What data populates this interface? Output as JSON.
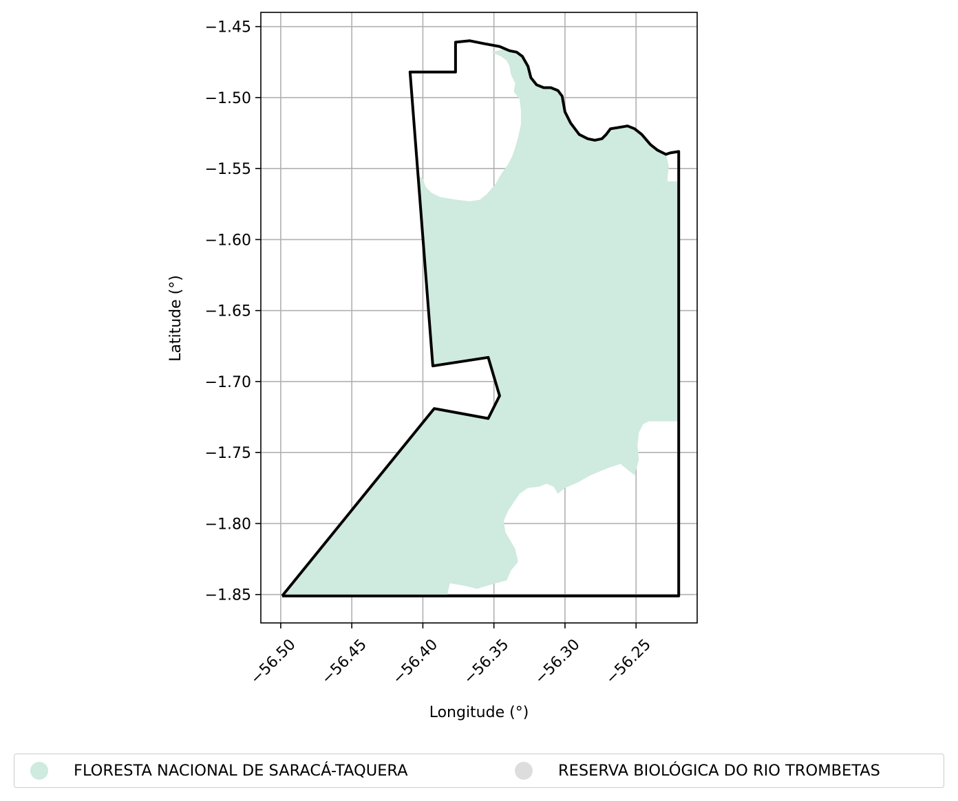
{
  "chart_data": {
    "type": "map",
    "xlabel": "Longitude (°)",
    "ylabel": "Latitude (°)",
    "xlim": [
      -56.514,
      -56.207
    ],
    "ylim": [
      -1.87,
      -1.44
    ],
    "xticks": [
      -56.5,
      -56.45,
      -56.4,
      -56.35,
      -56.3,
      -56.25
    ],
    "xtick_labels": [
      "−56.50",
      "−56.45",
      "−56.40",
      "−56.35",
      "−56.30",
      "−56.25"
    ],
    "yticks": [
      -1.45,
      -1.5,
      -1.55,
      -1.6,
      -1.65,
      -1.7,
      -1.75,
      -1.8,
      -1.85
    ],
    "ytick_labels": [
      "−1.45",
      "−1.50",
      "−1.55",
      "−1.60",
      "−1.65",
      "−1.70",
      "−1.75",
      "−1.80",
      "−1.85"
    ],
    "grid": true,
    "legend_placement": "bottom",
    "boundary": {
      "color": "#000000",
      "coords": [
        [
          -56.499,
          -1.851
        ],
        [
          -56.392,
          -1.719
        ],
        [
          -56.354,
          -1.726
        ],
        [
          -56.346,
          -1.71
        ],
        [
          -56.354,
          -1.683
        ],
        [
          -56.393,
          -1.689
        ],
        [
          -56.409,
          -1.482
        ],
        [
          -56.377,
          -1.482
        ],
        [
          -56.377,
          -1.461
        ],
        [
          -56.367,
          -1.46
        ],
        [
          -56.357,
          -1.462
        ],
        [
          -56.346,
          -1.464
        ],
        [
          -56.339,
          -1.467
        ],
        [
          -56.334,
          -1.468
        ],
        [
          -56.33,
          -1.471
        ],
        [
          -56.326,
          -1.478
        ],
        [
          -56.324,
          -1.486
        ],
        [
          -56.32,
          -1.491
        ],
        [
          -56.315,
          -1.493
        ],
        [
          -56.31,
          -1.493
        ],
        [
          -56.305,
          -1.495
        ],
        [
          -56.302,
          -1.499
        ],
        [
          -56.3,
          -1.51
        ],
        [
          -56.296,
          -1.518
        ],
        [
          -56.29,
          -1.526
        ],
        [
          -56.284,
          -1.529
        ],
        [
          -56.279,
          -1.53
        ],
        [
          -56.274,
          -1.529
        ],
        [
          -56.271,
          -1.526
        ],
        [
          -56.268,
          -1.522
        ],
        [
          -56.262,
          -1.521
        ],
        [
          -56.256,
          -1.52
        ],
        [
          -56.251,
          -1.522
        ],
        [
          -56.246,
          -1.526
        ],
        [
          -56.24,
          -1.533
        ],
        [
          -56.235,
          -1.537
        ],
        [
          -56.229,
          -1.54
        ],
        [
          -56.226,
          -1.539
        ],
        [
          -56.22,
          -1.538
        ],
        [
          -56.22,
          -1.851
        ],
        [
          -56.499,
          -1.851
        ]
      ]
    },
    "areas": [
      {
        "name": "FLORESTA NACIONAL DE SARACÁ-TAQUERA",
        "color": "#cfeade",
        "coords": [
          [
            -56.499,
            -1.851
          ],
          [
            -56.392,
            -1.719
          ],
          [
            -56.354,
            -1.726
          ],
          [
            -56.346,
            -1.71
          ],
          [
            -56.354,
            -1.683
          ],
          [
            -56.393,
            -1.689
          ],
          [
            -56.403,
            -1.555
          ],
          [
            -56.4,
            -1.557
          ],
          [
            -56.398,
            -1.563
          ],
          [
            -56.394,
            -1.567
          ],
          [
            -56.388,
            -1.57
          ],
          [
            -56.376,
            -1.572
          ],
          [
            -56.367,
            -1.573
          ],
          [
            -56.36,
            -1.572
          ],
          [
            -56.355,
            -1.568
          ],
          [
            -56.349,
            -1.561
          ],
          [
            -56.345,
            -1.554
          ],
          [
            -56.34,
            -1.547
          ],
          [
            -56.337,
            -1.541
          ],
          [
            -56.335,
            -1.535
          ],
          [
            -56.333,
            -1.528
          ],
          [
            -56.331,
            -1.519
          ],
          [
            -56.331,
            -1.509
          ],
          [
            -56.332,
            -1.501
          ],
          [
            -56.336,
            -1.496
          ],
          [
            -56.335,
            -1.49
          ],
          [
            -56.338,
            -1.484
          ],
          [
            -56.339,
            -1.478
          ],
          [
            -56.341,
            -1.474
          ],
          [
            -56.345,
            -1.471
          ],
          [
            -56.352,
            -1.468
          ],
          [
            -56.343,
            -1.466
          ],
          [
            -56.334,
            -1.468
          ],
          [
            -56.33,
            -1.471
          ],
          [
            -56.326,
            -1.478
          ],
          [
            -56.324,
            -1.486
          ],
          [
            -56.32,
            -1.491
          ],
          [
            -56.315,
            -1.493
          ],
          [
            -56.31,
            -1.493
          ],
          [
            -56.305,
            -1.495
          ],
          [
            -56.302,
            -1.499
          ],
          [
            -56.3,
            -1.51
          ],
          [
            -56.296,
            -1.518
          ],
          [
            -56.29,
            -1.526
          ],
          [
            -56.284,
            -1.529
          ],
          [
            -56.279,
            -1.53
          ],
          [
            -56.274,
            -1.529
          ],
          [
            -56.271,
            -1.526
          ],
          [
            -56.268,
            -1.522
          ],
          [
            -56.262,
            -1.521
          ],
          [
            -56.256,
            -1.52
          ],
          [
            -56.251,
            -1.522
          ],
          [
            -56.246,
            -1.526
          ],
          [
            -56.24,
            -1.533
          ],
          [
            -56.235,
            -1.537
          ],
          [
            -56.229,
            -1.54
          ],
          [
            -56.227,
            -1.548
          ],
          [
            -56.228,
            -1.559
          ],
          [
            -56.22,
            -1.559
          ],
          [
            -56.22,
            -1.728
          ],
          [
            -56.241,
            -1.728
          ],
          [
            -56.245,
            -1.73
          ],
          [
            -56.248,
            -1.736
          ],
          [
            -56.249,
            -1.745
          ],
          [
            -56.248,
            -1.755
          ],
          [
            -56.251,
            -1.766
          ],
          [
            -56.261,
            -1.758
          ],
          [
            -56.27,
            -1.761
          ],
          [
            -56.282,
            -1.766
          ],
          [
            -56.291,
            -1.771
          ],
          [
            -56.3,
            -1.775
          ],
          [
            -56.305,
            -1.779
          ],
          [
            -56.308,
            -1.774
          ],
          [
            -56.313,
            -1.772
          ],
          [
            -56.318,
            -1.774
          ],
          [
            -56.326,
            -1.775
          ],
          [
            -56.332,
            -1.779
          ],
          [
            -56.336,
            -1.785
          ],
          [
            -56.34,
            -1.791
          ],
          [
            -56.343,
            -1.798
          ],
          [
            -56.342,
            -1.806
          ],
          [
            -56.339,
            -1.811
          ],
          [
            -56.335,
            -1.818
          ],
          [
            -56.333,
            -1.827
          ],
          [
            -56.338,
            -1.833
          ],
          [
            -56.341,
            -1.84
          ],
          [
            -56.352,
            -1.843
          ],
          [
            -56.362,
            -1.846
          ],
          [
            -56.37,
            -1.844
          ],
          [
            -56.381,
            -1.842
          ],
          [
            -56.383,
            -1.851
          ],
          [
            -56.499,
            -1.851
          ]
        ]
      }
    ],
    "legend": [
      {
        "label": "FLORESTA NACIONAL DE SARACÁ-TAQUERA",
        "color": "#cfeade"
      },
      {
        "label": "RESERVA BIOLÓGICA DO RIO TROMBETAS",
        "color": "#dddddd"
      }
    ]
  }
}
